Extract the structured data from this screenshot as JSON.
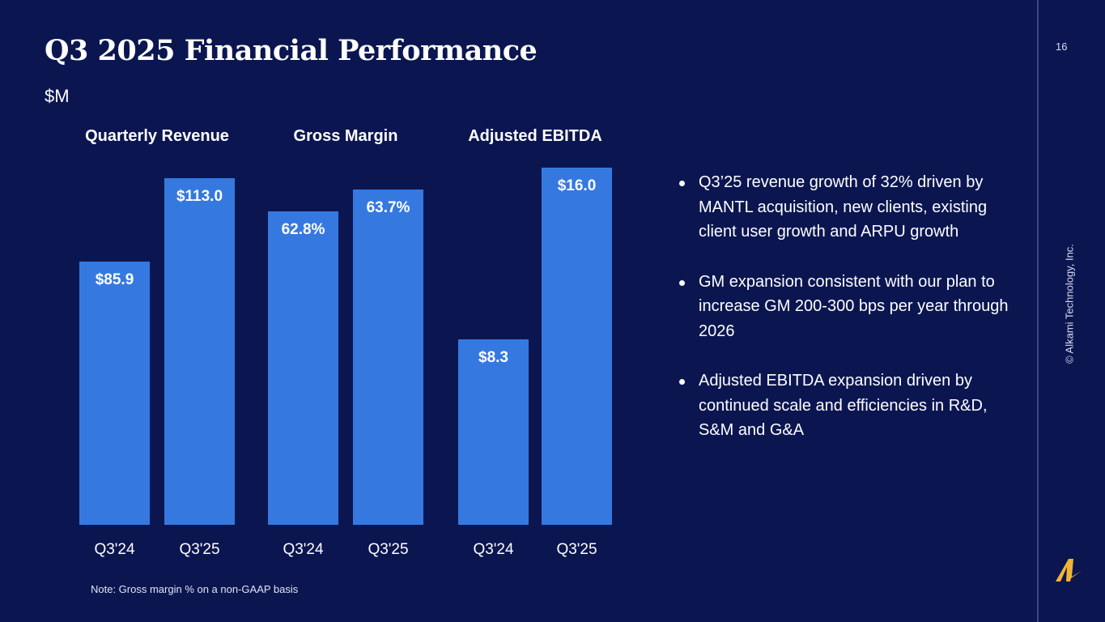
{
  "title": "Q3 2025 Financial Performance",
  "unit": "$M",
  "page_number": "16",
  "copyright": "© Alkami Technology, Inc.",
  "note": "Note: Gross margin % on a non-GAAP basis",
  "colors": {
    "background": "#0b1651",
    "bar": "#3579e0",
    "logo": "#f2b533"
  },
  "bullets": [
    "Q3’25 revenue growth of 32% driven by MANTL acquisition, new clients, existing client user growth and ARPU growth",
    "GM expansion consistent with our plan to increase GM 200-300 bps per year through 2026",
    "Adjusted EBITDA expansion driven by continued scale and efficiencies in R&D, S&M and G&A"
  ],
  "chart_data": [
    {
      "type": "bar",
      "title": "Quarterly Revenue",
      "categories": [
        "Q3'24",
        "Q3'25"
      ],
      "values": [
        85.9,
        113.0
      ],
      "labels": [
        "$85.9",
        "$113.0"
      ],
      "ylim": [
        0,
        116.4
      ]
    },
    {
      "type": "bar",
      "title": "Gross Margin",
      "categories": [
        "Q3'24",
        "Q3'25"
      ],
      "values": [
        62.8,
        63.7
      ],
      "labels": [
        "62.8%",
        "63.7%"
      ],
      "ylim": [
        50,
        64.6
      ]
    },
    {
      "type": "bar",
      "title": "Adjusted EBITDA",
      "categories": [
        "Q3'24",
        "Q3'25"
      ],
      "values": [
        8.3,
        16.0
      ],
      "labels": [
        "$8.3",
        "$16.0"
      ],
      "ylim": [
        0,
        16
      ]
    }
  ]
}
